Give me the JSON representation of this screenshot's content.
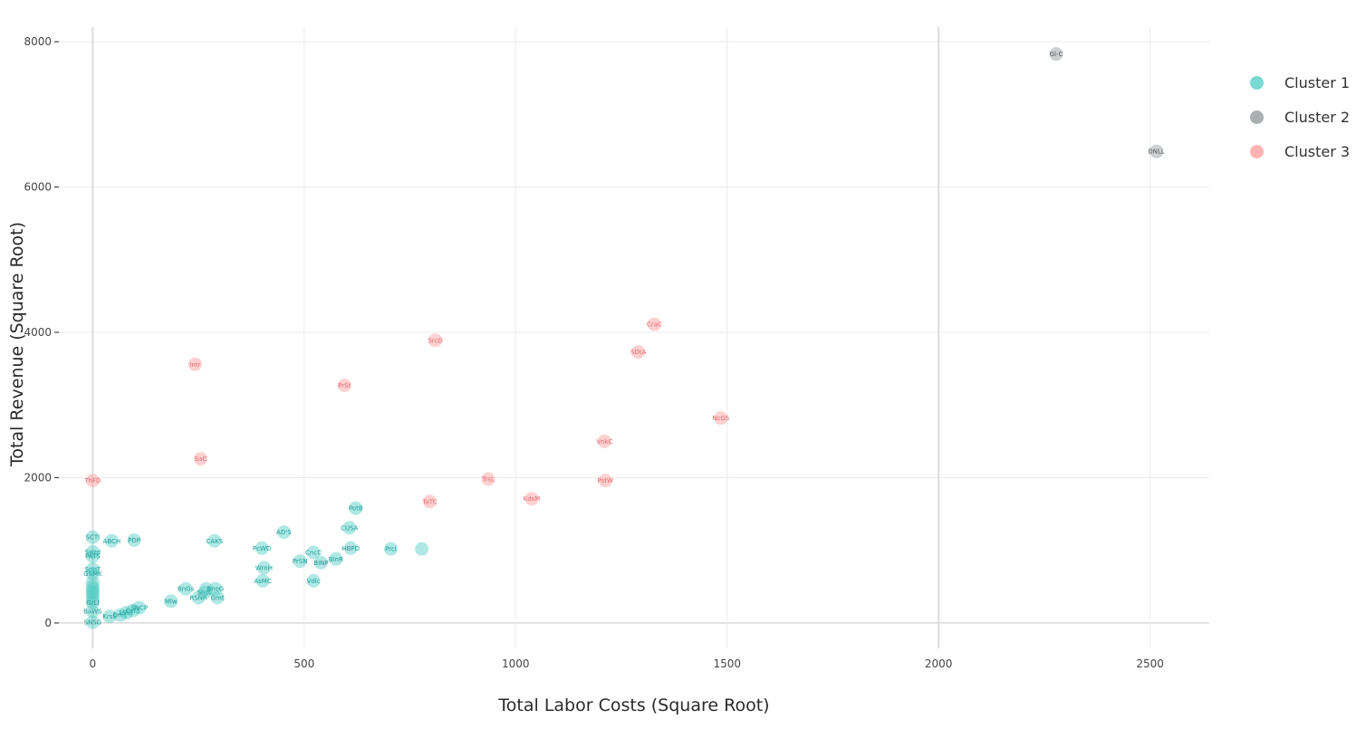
{
  "chart_data": {
    "type": "scatter",
    "title": "",
    "xlabel": "Total Labor Costs (Square Root)",
    "ylabel": "Total Revenue (Square Root)",
    "xlim": [
      -80,
      2640
    ],
    "ylim": [
      -350,
      8200
    ],
    "xticks": [
      0,
      500,
      1000,
      1500,
      2000,
      2500
    ],
    "yticks": [
      0,
      2000,
      4000,
      6000,
      8000
    ],
    "grid": true,
    "legend_position": "right",
    "colors": {
      "Cluster 1": "#4ecdc4",
      "Cluster 2": "#8e9697",
      "Cluster 3": "#ff9a9a"
    },
    "label_colors": {
      "Cluster 1": "#1a9e95",
      "Cluster 2": "#555c5d",
      "Cluster 3": "#e8696e"
    },
    "series": [
      {
        "name": "Cluster 1",
        "points": [
          {
            "x": 0,
            "y": 1180,
            "label": "SCTI"
          },
          {
            "x": 45,
            "y": 1130,
            "label": "ABCH"
          },
          {
            "x": 98,
            "y": 1140,
            "label": "PDP"
          },
          {
            "x": 0,
            "y": 980,
            "label": "Swrd"
          },
          {
            "x": 0,
            "y": 920,
            "label": "PATS"
          },
          {
            "x": 0,
            "y": 740,
            "label": "SnpT"
          },
          {
            "x": 0,
            "y": 680,
            "label": "GSMK"
          },
          {
            "x": 0,
            "y": 560,
            "label": ""
          },
          {
            "x": 0,
            "y": 500,
            "label": ""
          },
          {
            "x": 0,
            "y": 460,
            "label": ""
          },
          {
            "x": 0,
            "y": 420,
            "label": ""
          },
          {
            "x": 0,
            "y": 380,
            "label": ""
          },
          {
            "x": 0,
            "y": 330,
            "label": ""
          },
          {
            "x": 0,
            "y": 280,
            "label": "GrLl"
          },
          {
            "x": 0,
            "y": 160,
            "label": "BaWS"
          },
          {
            "x": 0,
            "y": 10,
            "label": "SNSG"
          },
          {
            "x": 40,
            "y": 90,
            "label": "KrsS"
          },
          {
            "x": 65,
            "y": 110,
            "label": "DrFL"
          },
          {
            "x": 80,
            "y": 140,
            "label": "LSSF"
          },
          {
            "x": 95,
            "y": 170,
            "label": "CrTS"
          },
          {
            "x": 110,
            "y": 210,
            "label": "SNCP"
          },
          {
            "x": 185,
            "y": 300,
            "label": "Mlw"
          },
          {
            "x": 220,
            "y": 470,
            "label": "BnGs"
          },
          {
            "x": 250,
            "y": 350,
            "label": "RSNR"
          },
          {
            "x": 265,
            "y": 420,
            "label": "ShpL"
          },
          {
            "x": 268,
            "y": 470,
            "label": ""
          },
          {
            "x": 290,
            "y": 470,
            "label": "BnoG"
          },
          {
            "x": 295,
            "y": 350,
            "label": "Gmt"
          },
          {
            "x": 288,
            "y": 1130,
            "label": "CAKS"
          },
          {
            "x": 400,
            "y": 1030,
            "label": "PcWD"
          },
          {
            "x": 405,
            "y": 760,
            "label": "WrnH"
          },
          {
            "x": 402,
            "y": 580,
            "label": "AsMC"
          },
          {
            "x": 452,
            "y": 1250,
            "label": "AD'S"
          },
          {
            "x": 490,
            "y": 850,
            "label": "PrSN"
          },
          {
            "x": 522,
            "y": 970,
            "label": "CncC"
          },
          {
            "x": 522,
            "y": 580,
            "label": "Vdlc"
          },
          {
            "x": 540,
            "y": 830,
            "label": "BINP"
          },
          {
            "x": 575,
            "y": 880,
            "label": "BlnR"
          },
          {
            "x": 610,
            "y": 1030,
            "label": "HBPD"
          },
          {
            "x": 607,
            "y": 1310,
            "label": "CUSA"
          },
          {
            "x": 622,
            "y": 1580,
            "label": "PotB"
          },
          {
            "x": 705,
            "y": 1020,
            "label": "PrcI"
          },
          {
            "x": 778,
            "y": 1020,
            "label": ""
          }
        ]
      },
      {
        "name": "Cluster 2",
        "points": [
          {
            "x": 2278,
            "y": 7830,
            "label": "Gl-C"
          },
          {
            "x": 2515,
            "y": 6490,
            "label": "DNLL"
          }
        ]
      },
      {
        "name": "Cluster 3",
        "points": [
          {
            "x": 0,
            "y": 1960,
            "label": "ThFD"
          },
          {
            "x": 242,
            "y": 3560,
            "label": "Intr"
          },
          {
            "x": 255,
            "y": 2260,
            "label": "SaC"
          },
          {
            "x": 595,
            "y": 3270,
            "label": "PrSt"
          },
          {
            "x": 810,
            "y": 3890,
            "label": "SrcD"
          },
          {
            "x": 797,
            "y": 1670,
            "label": "TaTC"
          },
          {
            "x": 935,
            "y": 1980,
            "label": "TrsL"
          },
          {
            "x": 1038,
            "y": 1710,
            "label": "KdsM"
          },
          {
            "x": 1210,
            "y": 2500,
            "label": "VnkC"
          },
          {
            "x": 1212,
            "y": 1960,
            "label": "PstW"
          },
          {
            "x": 1290,
            "y": 3730,
            "label": "SDtA"
          },
          {
            "x": 1328,
            "y": 4110,
            "label": "CraC"
          },
          {
            "x": 1485,
            "y": 2820,
            "label": "NcGS"
          }
        ]
      }
    ]
  },
  "legend": {
    "items": [
      {
        "label": "Cluster 1",
        "color": "#4ecdc4"
      },
      {
        "label": "Cluster 2",
        "color": "#8e9697"
      },
      {
        "label": "Cluster 3",
        "color": "#ff9a9a"
      }
    ]
  }
}
